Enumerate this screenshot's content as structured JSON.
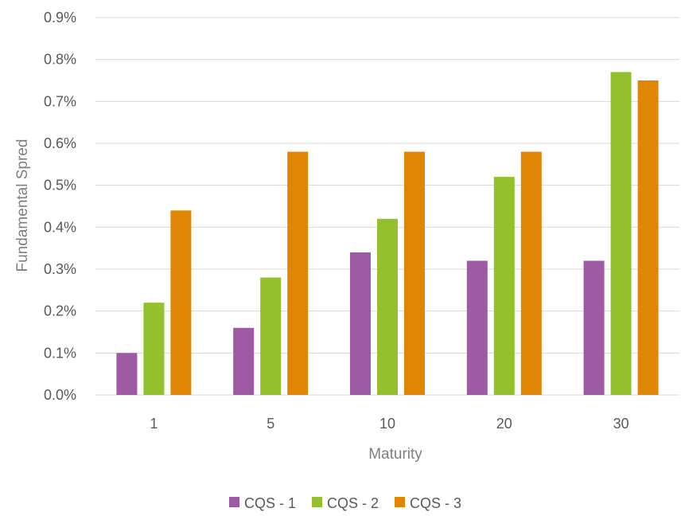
{
  "chart_data": {
    "type": "bar",
    "xlabel": "Maturity",
    "ylabel": "Fundamental Spred",
    "categories": [
      "1",
      "5",
      "10",
      "20",
      "30"
    ],
    "ylim": [
      0,
      0.9
    ],
    "yticks": [
      0.0,
      0.1,
      0.2,
      0.3,
      0.4,
      0.5,
      0.6,
      0.7,
      0.8,
      0.9
    ],
    "ytick_labels": [
      "0.0%",
      "0.1%",
      "0.2%",
      "0.3%",
      "0.4%",
      "0.5%",
      "0.6%",
      "0.7%",
      "0.8%",
      "0.9%"
    ],
    "grid": true,
    "legend": "bottom",
    "series": [
      {
        "name": "CQS - 1",
        "color": "#9e5aa3",
        "values": [
          0.1,
          0.16,
          0.34,
          0.32,
          0.32
        ]
      },
      {
        "name": "CQS - 2",
        "color": "#93c02c",
        "values": [
          0.22,
          0.28,
          0.42,
          0.52,
          0.77
        ]
      },
      {
        "name": "CQS - 3",
        "color": "#df8705",
        "values": [
          0.44,
          0.58,
          0.58,
          0.58,
          0.75
        ]
      }
    ]
  }
}
